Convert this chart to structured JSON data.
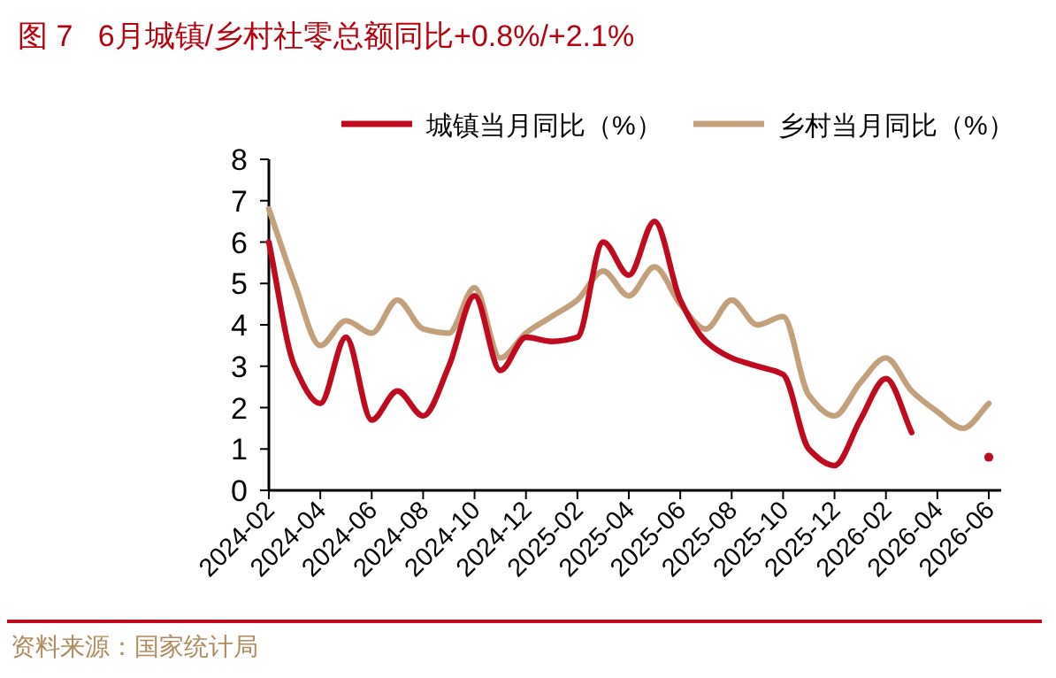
{
  "chart_data": {
    "type": "line",
    "title": "图 7   6月城镇/乡村社零总额同比+0.8%/+2.1%",
    "categories": [
      "2024-02",
      null,
      "2024-04",
      null,
      "2024-06",
      null,
      "2024-08",
      null,
      "2024-10",
      null,
      "2024-12",
      null,
      "2025-02",
      null,
      "2025-04",
      null,
      "2025-06",
      null,
      "2025-08",
      null,
      "2025-10",
      null,
      "2025-12",
      null,
      "2026-02",
      null,
      "2026-04",
      null,
      "2026-06"
    ],
    "series": [
      {
        "name": "城镇当月同比（%）",
        "color": "#c00a1e",
        "values": [
          6.0,
          3.0,
          2.1,
          3.7,
          1.7,
          2.4,
          1.8,
          3.0,
          4.7,
          2.9,
          3.7,
          3.6,
          3.7,
          6.0,
          5.2,
          6.5,
          4.6,
          3.6,
          3.2,
          3.0,
          2.8,
          1.0,
          0.6,
          1.7,
          2.7,
          1.4,
          null,
          null,
          0.8
        ]
      },
      {
        "name": "乡村当月同比（%）",
        "color": "#c4a07a",
        "values": [
          6.8,
          5.0,
          3.5,
          4.1,
          3.8,
          4.6,
          3.9,
          3.8,
          4.9,
          3.2,
          3.8,
          4.2,
          4.6,
          5.3,
          4.7,
          5.4,
          4.5,
          3.9,
          4.6,
          4.0,
          4.2,
          2.3,
          1.8,
          2.6,
          3.2,
          2.4,
          1.9,
          1.5,
          2.1
        ]
      }
    ],
    "ylim": [
      0,
      8
    ],
    "yticks": [
      0,
      1,
      2,
      3,
      4,
      5,
      6,
      7,
      8
    ],
    "legend": "top",
    "marker": "none",
    "line_style": "solid",
    "annotations": [
      "资料来源：国家统计局"
    ]
  }
}
